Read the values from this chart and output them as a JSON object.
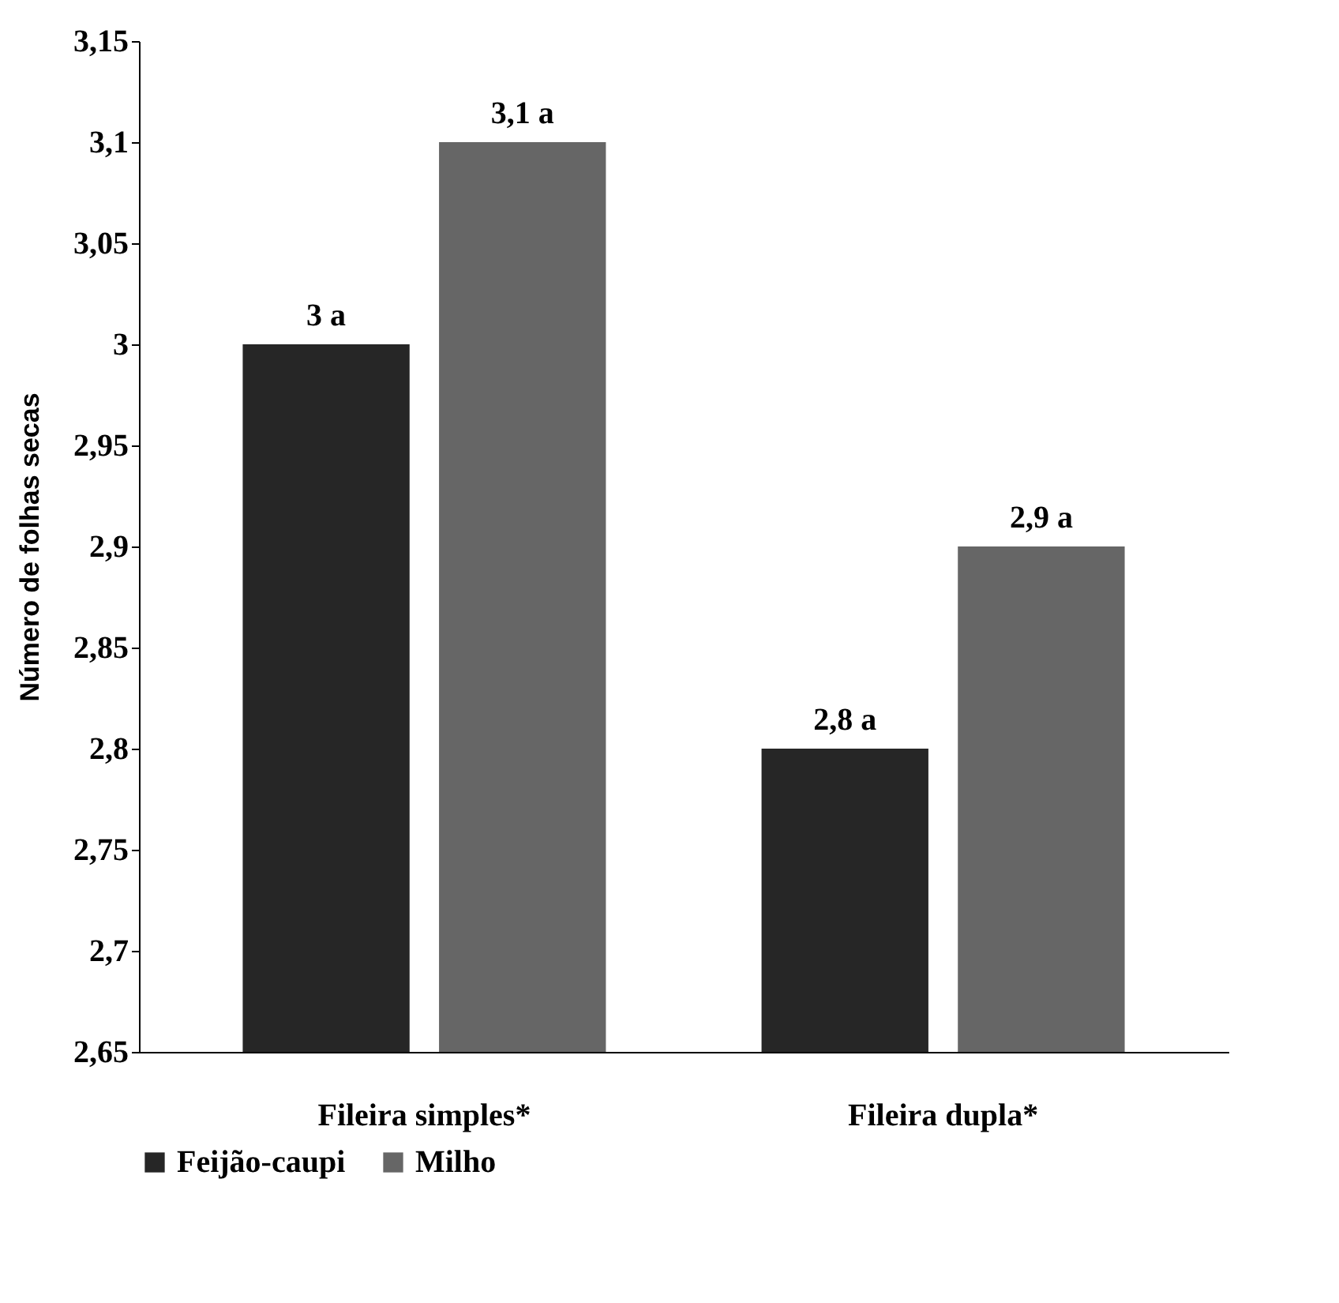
{
  "chart_data": {
    "type": "bar",
    "ylabel": "Número de folhas secas",
    "categories": [
      "Fileira simples*",
      "Fileira dupla*"
    ],
    "series": [
      {
        "name": "Feijão-caupi",
        "color": "#262626",
        "values": [
          3,
          2.8
        ],
        "value_labels": [
          "3 a",
          "2,8 a"
        ]
      },
      {
        "name": "Milho",
        "color": "#666666",
        "values": [
          3.1,
          2.9
        ],
        "value_labels": [
          "3,1 a",
          "2,9 a"
        ]
      }
    ],
    "ylim": [
      2.65,
      3.15
    ],
    "yticks": [
      {
        "value": 2.65,
        "label": "2,65"
      },
      {
        "value": 2.7,
        "label": "2,7"
      },
      {
        "value": 2.75,
        "label": "2,75"
      },
      {
        "value": 2.8,
        "label": "2,8"
      },
      {
        "value": 2.85,
        "label": "2,85"
      },
      {
        "value": 2.9,
        "label": "2,9"
      },
      {
        "value": 2.95,
        "label": "2,95"
      },
      {
        "value": 3,
        "label": "3"
      },
      {
        "value": 3.05,
        "label": "3,05"
      },
      {
        "value": 3.1,
        "label": "3,1"
      },
      {
        "value": 3.15,
        "label": "3,15"
      }
    ],
    "grid": false,
    "legend": "bottom"
  }
}
